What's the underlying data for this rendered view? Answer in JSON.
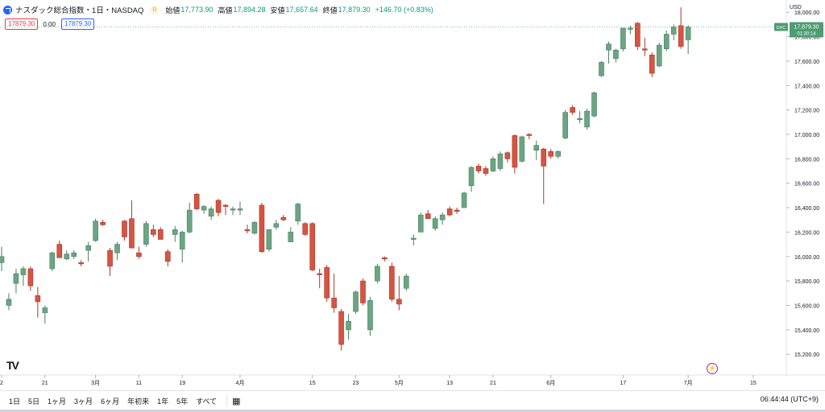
{
  "header": {
    "symbol": "ナスダック総合指数・1日・NASDAQ",
    "delay_badge": "D",
    "ohlc": [
      {
        "label": "始値",
        "value": "17,773.90"
      },
      {
        "label": "高値",
        "value": "17,894.28"
      },
      {
        "label": "安値",
        "value": "17,657.64"
      },
      {
        "label": "終値",
        "value": "17,879.30"
      }
    ],
    "change": "+146.70 (+0.83%)"
  },
  "quote": {
    "bid": "17879.30",
    "spread": "0.00",
    "ask": "17879.30"
  },
  "currency": "USD",
  "price_label": {
    "exchange": "DXC",
    "price": "17,879.30",
    "countdown": "01:30:14"
  },
  "toolbar": {
    "ranges": [
      "1日",
      "5日",
      "1ヶ月",
      "3ヶ月",
      "6ヶ月",
      "年初来",
      "1年",
      "5年",
      "すべて"
    ],
    "calendar_icon": "calendar-range-icon",
    "time": "06:44:44 (UTC+9)"
  },
  "colors": {
    "up": "#6ba583",
    "down": "#d75442",
    "grid": "#f0f3fa",
    "accent": "#2962ff"
  },
  "chart_data": {
    "type": "candlestick",
    "y_ticks": [
      15200,
      15400,
      15600,
      15800,
      16000,
      16200,
      16400,
      16600,
      16800,
      17000,
      17200,
      17400,
      17600,
      17800,
      18000
    ],
    "ylim": [
      15030,
      18100
    ],
    "x_ticks": [
      {
        "label": "2",
        "index": 0
      },
      {
        "label": "21",
        "index": 6
      },
      {
        "label": "3月",
        "index": 13
      },
      {
        "label": "11",
        "index": 19
      },
      {
        "label": "19",
        "index": 25
      },
      {
        "label": "4月",
        "index": 33
      },
      {
        "label": "15",
        "index": 43
      },
      {
        "label": "23",
        "index": 49
      },
      {
        "label": "5月",
        "index": 55
      },
      {
        "label": "13",
        "index": 62
      },
      {
        "label": "21",
        "index": 68
      },
      {
        "label": "6月",
        "index": 76
      },
      {
        "label": "17",
        "index": 86
      },
      {
        "label": "7月",
        "index": 95
      },
      {
        "label": "15",
        "index": 104
      }
    ],
    "last_price": 17879.3,
    "candles": [
      {
        "o": 15950,
        "h": 16080,
        "l": 15880,
        "c": 16000
      },
      {
        "o": 15600,
        "h": 15700,
        "l": 15560,
        "c": 15650
      },
      {
        "o": 15780,
        "h": 15900,
        "l": 15700,
        "c": 15860
      },
      {
        "o": 15850,
        "h": 15920,
        "l": 15760,
        "c": 15900
      },
      {
        "o": 15900,
        "h": 15920,
        "l": 15720,
        "c": 15760
      },
      {
        "o": 15680,
        "h": 15750,
        "l": 15500,
        "c": 15630
      },
      {
        "o": 15540,
        "h": 15600,
        "l": 15450,
        "c": 15580
      },
      {
        "o": 15900,
        "h": 16040,
        "l": 15880,
        "c": 16030
      },
      {
        "o": 16100,
        "h": 16130,
        "l": 15990,
        "c": 15990
      },
      {
        "o": 15980,
        "h": 16050,
        "l": 15970,
        "c": 16020
      },
      {
        "o": 16000,
        "h": 16050,
        "l": 15980,
        "c": 16030
      },
      {
        "o": 15950,
        "h": 15970,
        "l": 15920,
        "c": 15940
      },
      {
        "o": 16050,
        "h": 16120,
        "l": 15960,
        "c": 16090
      },
      {
        "o": 16130,
        "h": 16310,
        "l": 16120,
        "c": 16290
      },
      {
        "o": 16280,
        "h": 16300,
        "l": 16250,
        "c": 16260
      },
      {
        "o": 16050,
        "h": 16070,
        "l": 15840,
        "c": 15920
      },
      {
        "o": 16030,
        "h": 16120,
        "l": 15970,
        "c": 16100
      },
      {
        "o": 16290,
        "h": 16300,
        "l": 16130,
        "c": 16160
      },
      {
        "o": 16310,
        "h": 16460,
        "l": 16080,
        "c": 16070
      },
      {
        "o": 16030,
        "h": 16080,
        "l": 15980,
        "c": 16000
      },
      {
        "o": 16100,
        "h": 16290,
        "l": 16080,
        "c": 16270
      },
      {
        "o": 16220,
        "h": 16260,
        "l": 16160,
        "c": 16180
      },
      {
        "o": 16220,
        "h": 16240,
        "l": 16140,
        "c": 16140
      },
      {
        "o": 16040,
        "h": 16060,
        "l": 15920,
        "c": 15960
      },
      {
        "o": 16180,
        "h": 16250,
        "l": 16120,
        "c": 16220
      },
      {
        "o": 16060,
        "h": 16210,
        "l": 15950,
        "c": 16200
      },
      {
        "o": 16200,
        "h": 16440,
        "l": 16190,
        "c": 16380
      },
      {
        "o": 16510,
        "h": 16520,
        "l": 16380,
        "c": 16390
      },
      {
        "o": 16380,
        "h": 16420,
        "l": 16350,
        "c": 16410
      },
      {
        "o": 16330,
        "h": 16410,
        "l": 16300,
        "c": 16390
      },
      {
        "o": 16460,
        "h": 16470,
        "l": 16330,
        "c": 16360
      },
      {
        "o": 16420,
        "h": 16430,
        "l": 16340,
        "c": 16410
      },
      {
        "o": 16380,
        "h": 16410,
        "l": 16340,
        "c": 16390
      },
      {
        "o": 16380,
        "h": 16450,
        "l": 16340,
        "c": 16390
      },
      {
        "o": 16220,
        "h": 16260,
        "l": 16190,
        "c": 16210
      },
      {
        "o": 16190,
        "h": 16290,
        "l": 16180,
        "c": 16280
      },
      {
        "o": 16420,
        "h": 16440,
        "l": 16030,
        "c": 16040
      },
      {
        "o": 16060,
        "h": 16220,
        "l": 16040,
        "c": 16220
      },
      {
        "o": 16240,
        "h": 16300,
        "l": 16220,
        "c": 16270
      },
      {
        "o": 16320,
        "h": 16340,
        "l": 16290,
        "c": 16300
      },
      {
        "o": 16120,
        "h": 16240,
        "l": 16120,
        "c": 16200
      },
      {
        "o": 16290,
        "h": 16440,
        "l": 16260,
        "c": 16430
      },
      {
        "o": 16270,
        "h": 16280,
        "l": 16170,
        "c": 16180
      },
      {
        "o": 16270,
        "h": 16280,
        "l": 15880,
        "c": 15890
      },
      {
        "o": 15860,
        "h": 15900,
        "l": 15740,
        "c": 15850
      },
      {
        "o": 15910,
        "h": 15930,
        "l": 15630,
        "c": 15660
      },
      {
        "o": 15660,
        "h": 15860,
        "l": 15540,
        "c": 15580
      },
      {
        "o": 15550,
        "h": 15570,
        "l": 15230,
        "c": 15280
      },
      {
        "o": 15400,
        "h": 15530,
        "l": 15320,
        "c": 15470
      },
      {
        "o": 15550,
        "h": 15720,
        "l": 15530,
        "c": 15710
      },
      {
        "o": 15800,
        "h": 15820,
        "l": 15600,
        "c": 15620
      },
      {
        "o": 15400,
        "h": 15670,
        "l": 15350,
        "c": 15640
      },
      {
        "o": 15800,
        "h": 15940,
        "l": 15780,
        "c": 15920
      },
      {
        "o": 15990,
        "h": 16000,
        "l": 15960,
        "c": 15980
      },
      {
        "o": 15920,
        "h": 15950,
        "l": 15630,
        "c": 15650
      },
      {
        "o": 15650,
        "h": 15840,
        "l": 15560,
        "c": 15610
      },
      {
        "o": 15740,
        "h": 15860,
        "l": 15720,
        "c": 15840
      },
      {
        "o": 16140,
        "h": 16180,
        "l": 16090,
        "c": 16150
      },
      {
        "o": 16200,
        "h": 16360,
        "l": 16200,
        "c": 16340
      },
      {
        "o": 16350,
        "h": 16380,
        "l": 16310,
        "c": 16310
      },
      {
        "o": 16230,
        "h": 16330,
        "l": 16210,
        "c": 16310
      },
      {
        "o": 16300,
        "h": 16360,
        "l": 16260,
        "c": 16340
      },
      {
        "o": 16390,
        "h": 16410,
        "l": 16330,
        "c": 16340
      },
      {
        "o": 16380,
        "h": 16400,
        "l": 16350,
        "c": 16370
      },
      {
        "o": 16400,
        "h": 16530,
        "l": 16400,
        "c": 16520
      },
      {
        "o": 16580,
        "h": 16740,
        "l": 16530,
        "c": 16730
      },
      {
        "o": 16740,
        "h": 16760,
        "l": 16680,
        "c": 16700
      },
      {
        "o": 16720,
        "h": 16740,
        "l": 16660,
        "c": 16680
      },
      {
        "o": 16700,
        "h": 16820,
        "l": 16690,
        "c": 16800
      },
      {
        "o": 16720,
        "h": 16860,
        "l": 16700,
        "c": 16840
      },
      {
        "o": 16850,
        "h": 16860,
        "l": 16770,
        "c": 16800
      },
      {
        "o": 16990,
        "h": 17000,
        "l": 16680,
        "c": 16730
      },
      {
        "o": 16780,
        "h": 16990,
        "l": 16770,
        "c": 16980
      },
      {
        "o": 17000,
        "h": 17010,
        "l": 16960,
        "c": 16990
      },
      {
        "o": 16870,
        "h": 16950,
        "l": 16790,
        "c": 16910
      },
      {
        "o": 16880,
        "h": 16890,
        "l": 16430,
        "c": 16740
      },
      {
        "o": 16860,
        "h": 16880,
        "l": 16800,
        "c": 16820
      },
      {
        "o": 16820,
        "h": 16870,
        "l": 16800,
        "c": 16860
      },
      {
        "o": 16970,
        "h": 17200,
        "l": 16960,
        "c": 17180
      },
      {
        "o": 17220,
        "h": 17240,
        "l": 17160,
        "c": 17180
      },
      {
        "o": 17120,
        "h": 17190,
        "l": 17090,
        "c": 17130
      },
      {
        "o": 17060,
        "h": 17210,
        "l": 17040,
        "c": 17190
      },
      {
        "o": 17150,
        "h": 17350,
        "l": 17140,
        "c": 17340
      },
      {
        "o": 17480,
        "h": 17600,
        "l": 17470,
        "c": 17590
      },
      {
        "o": 17690,
        "h": 17760,
        "l": 17580,
        "c": 17740
      },
      {
        "o": 17620,
        "h": 17700,
        "l": 17590,
        "c": 17690
      },
      {
        "o": 17700,
        "h": 17870,
        "l": 17680,
        "c": 17870
      },
      {
        "o": 17860,
        "h": 17890,
        "l": 17820,
        "c": 17870
      },
      {
        "o": 17910,
        "h": 17920,
        "l": 17690,
        "c": 17720
      },
      {
        "o": 17700,
        "h": 17790,
        "l": 17640,
        "c": 17690
      },
      {
        "o": 17650,
        "h": 17670,
        "l": 17470,
        "c": 17500
      },
      {
        "o": 17560,
        "h": 17750,
        "l": 17550,
        "c": 17730
      },
      {
        "o": 17700,
        "h": 17850,
        "l": 17680,
        "c": 17820
      },
      {
        "o": 17820,
        "h": 17900,
        "l": 17770,
        "c": 17880
      },
      {
        "o": 17890,
        "h": 18040,
        "l": 17700,
        "c": 17720
      },
      {
        "o": 17773.9,
        "h": 17894.28,
        "l": 17657.64,
        "c": 17879.3
      }
    ]
  }
}
